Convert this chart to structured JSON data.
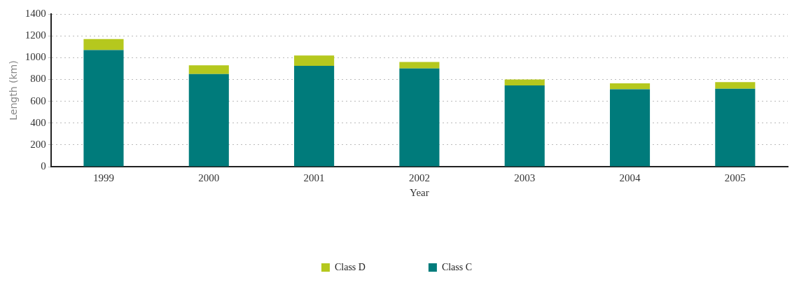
{
  "chart_data": {
    "type": "bar",
    "stacked": true,
    "xlabel": "Year",
    "ylabel": "Length (km)",
    "categories": [
      "1999",
      "2000",
      "2001",
      "2002",
      "2003",
      "2004",
      "2005"
    ],
    "series": [
      {
        "name": "Class C",
        "color": "#007b7b",
        "values": [
          1070,
          850,
          925,
          900,
          745,
          710,
          715
        ]
      },
      {
        "name": "Class D",
        "color": "#b5c81e",
        "values": [
          100,
          80,
          95,
          60,
          55,
          55,
          60
        ]
      }
    ],
    "ylim": [
      0,
      1400
    ],
    "yticks": [
      0,
      200,
      400,
      600,
      800,
      1000,
      1200,
      1400
    ],
    "grid": "y",
    "legend": "bottom"
  }
}
